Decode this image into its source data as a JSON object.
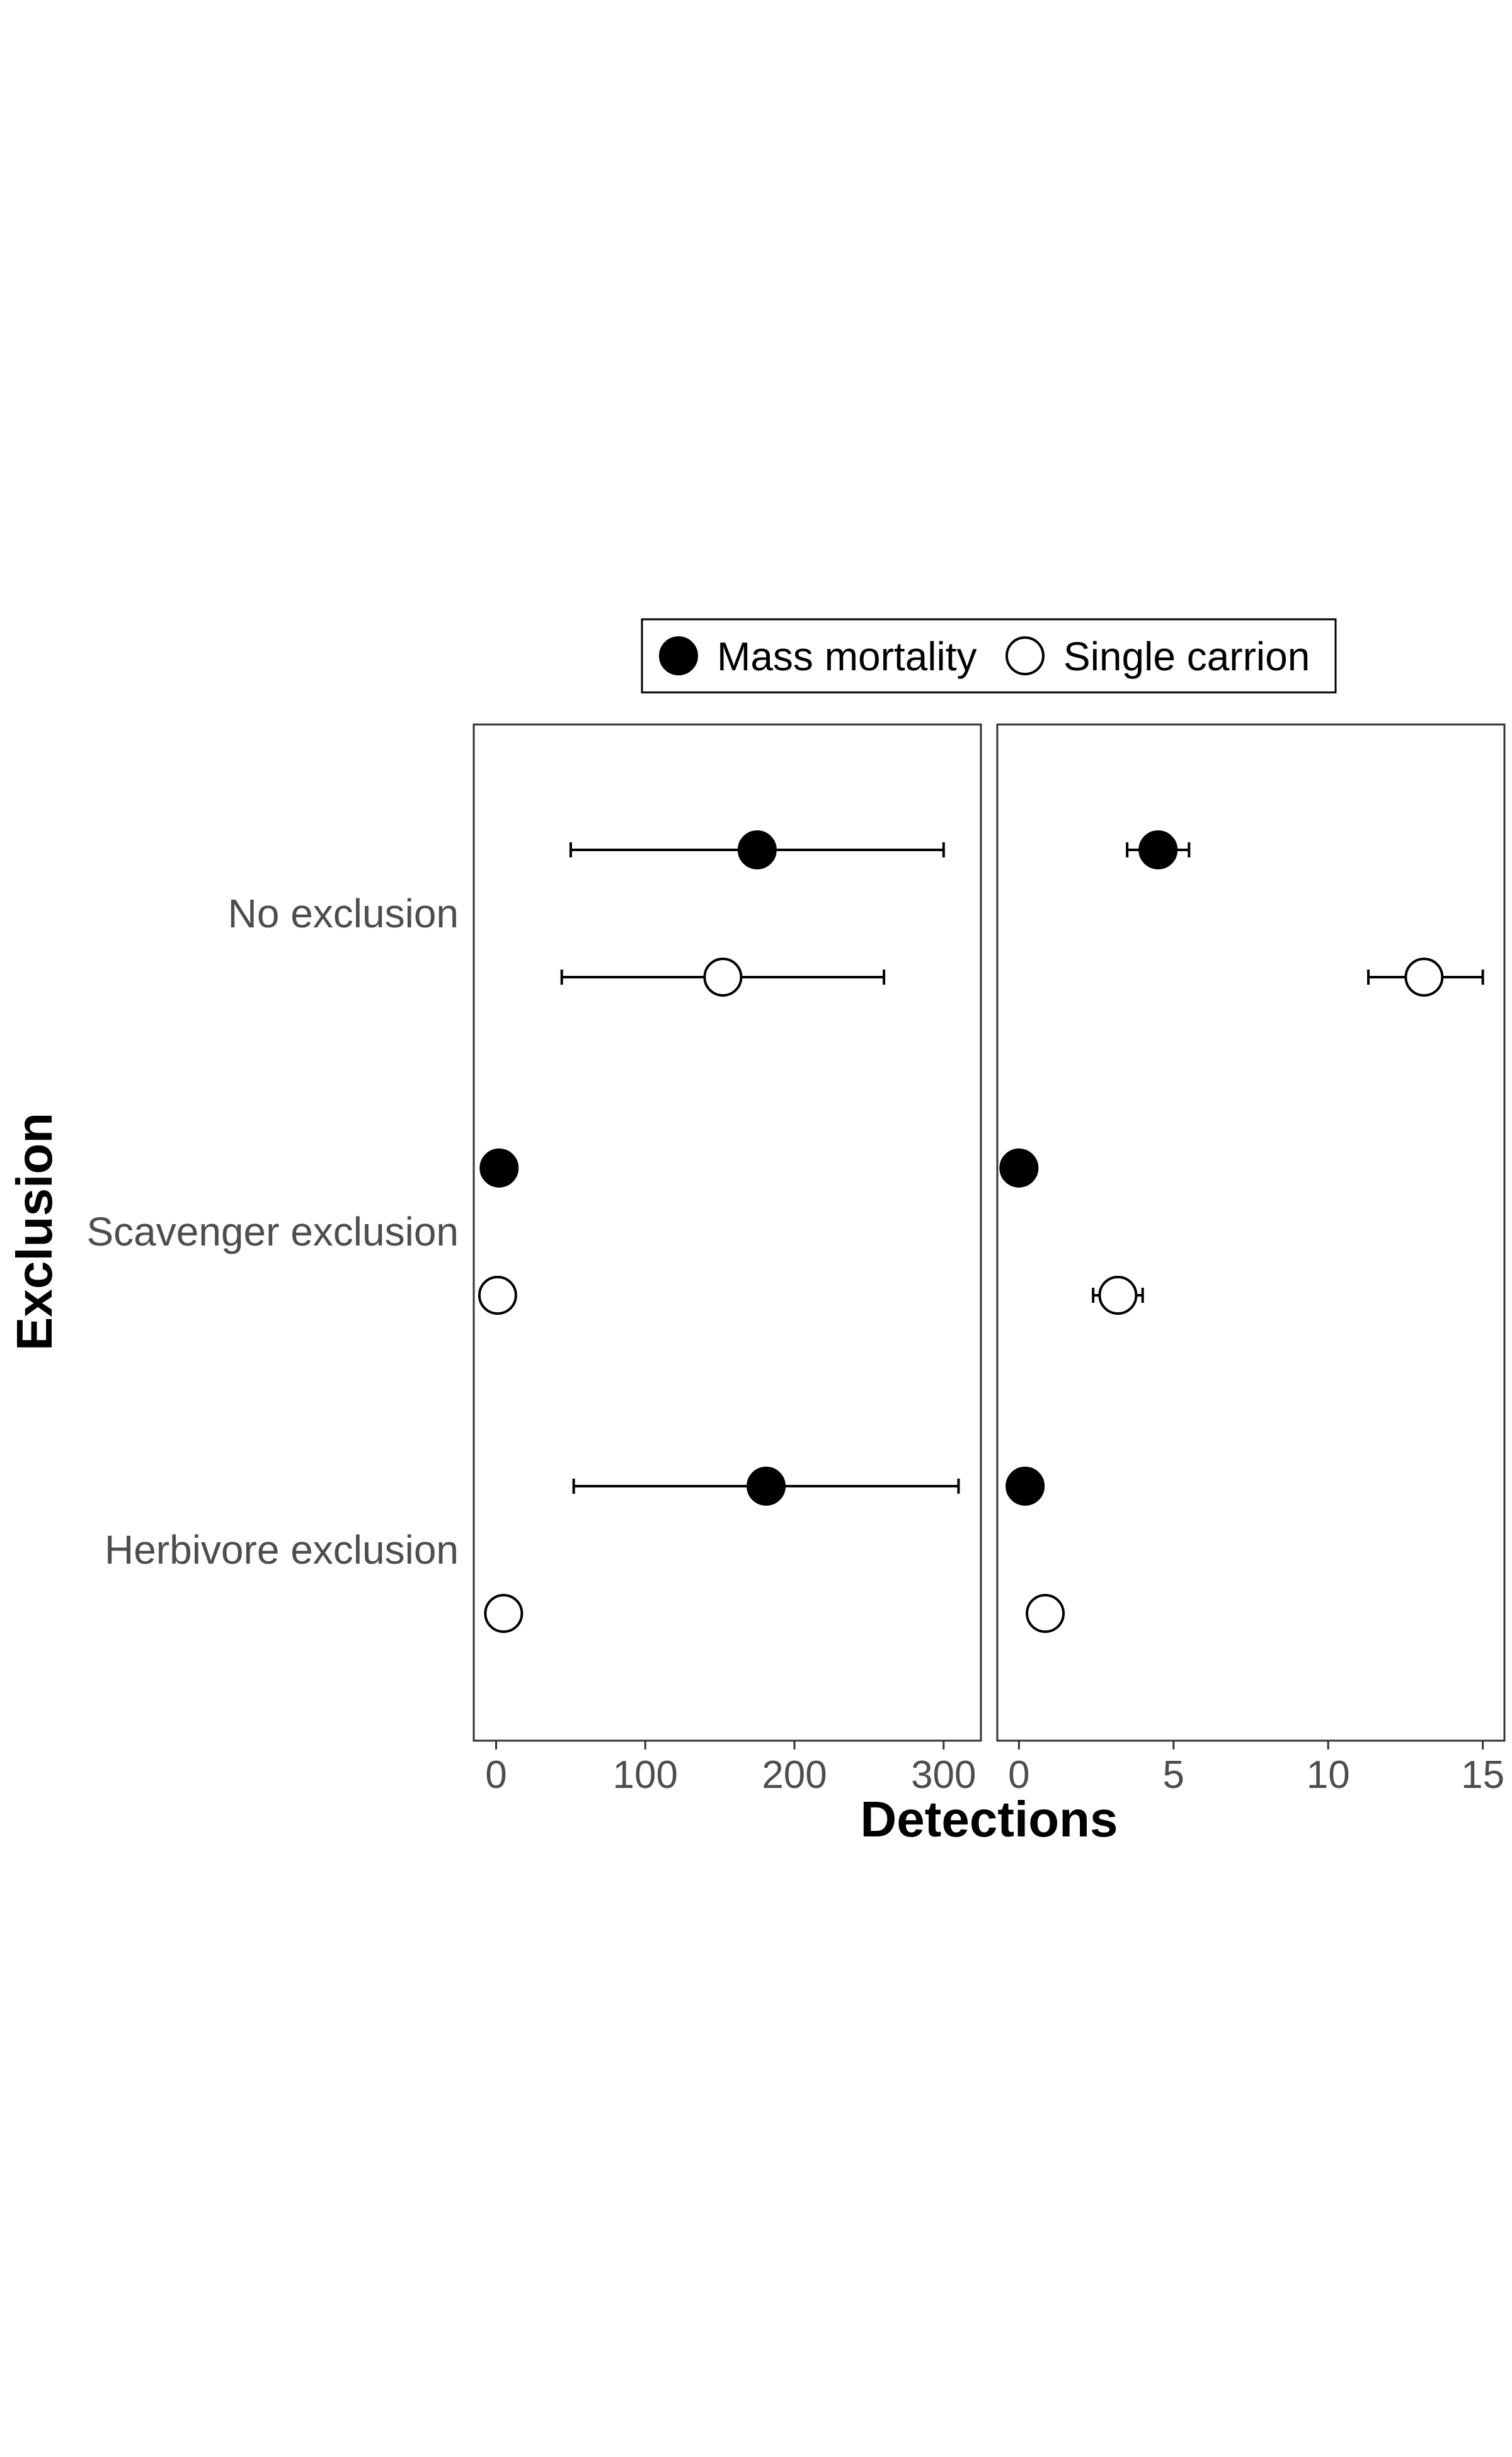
{
  "chart_data": {
    "type": "scatter",
    "xlabel": "Detections",
    "ylabel": "Exclusion",
    "categories": [
      "No exclusion",
      "Scavenger exclusion",
      "Herbivore exclusion"
    ],
    "legend": {
      "placement": "top",
      "entries": [
        {
          "name": "Mass mortality",
          "fill": "#000000"
        },
        {
          "name": "Single carrion",
          "fill": "#ffffff"
        }
      ]
    },
    "panels": [
      {
        "xlim": [
          -15,
          325
        ],
        "xticks": [
          0,
          100,
          200,
          300
        ],
        "points": [
          {
            "category": "No exclusion",
            "series": "Mass mortality",
            "x": 175,
            "low": 50,
            "high": 300
          },
          {
            "category": "No exclusion",
            "series": "Single carrion",
            "x": 152,
            "low": 44,
            "high": 260
          },
          {
            "category": "Scavenger exclusion",
            "series": "Mass mortality",
            "x": 2
          },
          {
            "category": "Scavenger exclusion",
            "series": "Single carrion",
            "x": 1
          },
          {
            "category": "Herbivore exclusion",
            "series": "Mass mortality",
            "x": 181,
            "low": 52,
            "high": 310
          },
          {
            "category": "Herbivore exclusion",
            "series": "Single carrion",
            "x": 5
          }
        ]
      },
      {
        "xlim": [
          -0.7,
          15.7
        ],
        "xticks": [
          0,
          5,
          10,
          15
        ],
        "points": [
          {
            "category": "No exclusion",
            "series": "Mass mortality",
            "x": 4.5,
            "low": 3.5,
            "high": 5.5
          },
          {
            "category": "No exclusion",
            "series": "Single carrion",
            "x": 13.1,
            "low": 11.3,
            "high": 15.0
          },
          {
            "category": "Scavenger exclusion",
            "series": "Mass mortality",
            "x": 0.0
          },
          {
            "category": "Scavenger exclusion",
            "series": "Single carrion",
            "x": 3.2,
            "low": 2.4,
            "high": 4.0
          },
          {
            "category": "Herbivore exclusion",
            "series": "Mass mortality",
            "x": 0.2
          },
          {
            "category": "Herbivore exclusion",
            "series": "Single carrion",
            "x": 0.85
          }
        ]
      }
    ]
  }
}
